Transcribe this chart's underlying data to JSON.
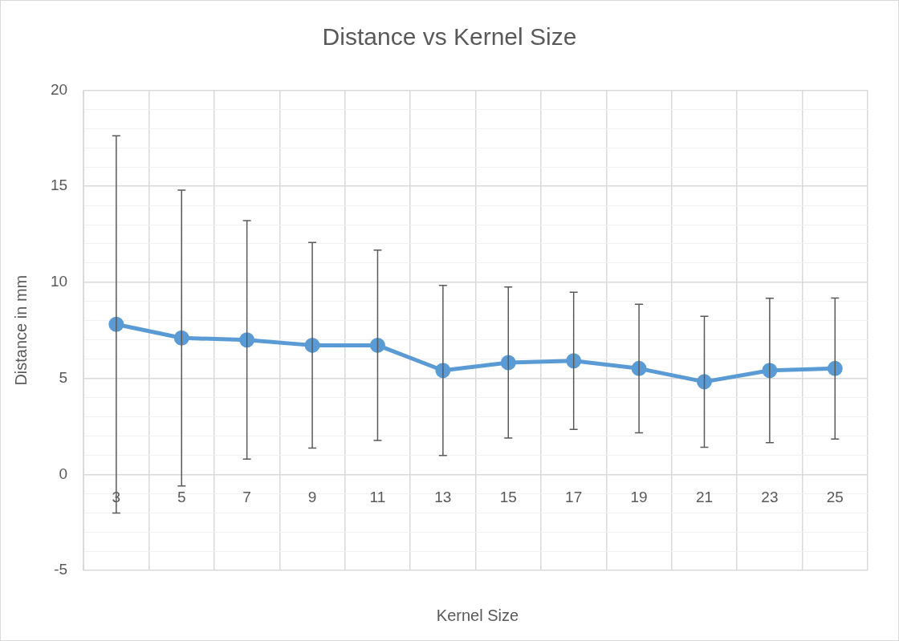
{
  "chart_data": {
    "type": "line",
    "title": "Distance vs Kernel Size",
    "xlabel": "Kernel Size",
    "ylabel": "Distance in mm",
    "categories": [
      "3",
      "5",
      "7",
      "9",
      "11",
      "13",
      "15",
      "17",
      "19",
      "21",
      "23",
      "25"
    ],
    "series": [
      {
        "color": "#5b9bd5",
        "values": [
          7.81,
          7.1,
          7.0,
          6.72,
          6.72,
          5.41,
          5.82,
          5.91,
          5.51,
          4.82,
          5.41,
          5.51
        ],
        "errors": [
          9.82,
          7.7,
          6.21,
          5.35,
          4.95,
          4.43,
          3.93,
          3.57,
          3.35,
          3.41,
          3.76,
          3.67
        ]
      }
    ],
    "ylim": [
      -5,
      20
    ],
    "yticks": [
      -5,
      {
        "value": -4,
        "label": null
      },
      {
        "value": -3,
        "label": null
      },
      {
        "value": -2,
        "label": null
      },
      {
        "value": -1,
        "label": null
      },
      0,
      {
        "value": 1,
        "label": null
      },
      {
        "value": 2,
        "label": null
      },
      {
        "value": 3,
        "label": null
      },
      {
        "value": 4,
        "label": null
      },
      5,
      {
        "value": 6,
        "label": null
      },
      {
        "value": 7,
        "label": null
      },
      {
        "value": 8,
        "label": null
      },
      {
        "value": 9,
        "label": null
      },
      10,
      {
        "value": 11,
        "label": null
      },
      {
        "value": 12,
        "label": null
      },
      {
        "value": 13,
        "label": null
      },
      {
        "value": 14,
        "label": null
      },
      15,
      {
        "value": 16,
        "label": null
      },
      {
        "value": 17,
        "label": null
      },
      {
        "value": 18,
        "label": null
      },
      {
        "value": 19,
        "label": null
      },
      20
    ],
    "grid": true,
    "marker": "circle",
    "line_style": "solid",
    "legend": false
  }
}
